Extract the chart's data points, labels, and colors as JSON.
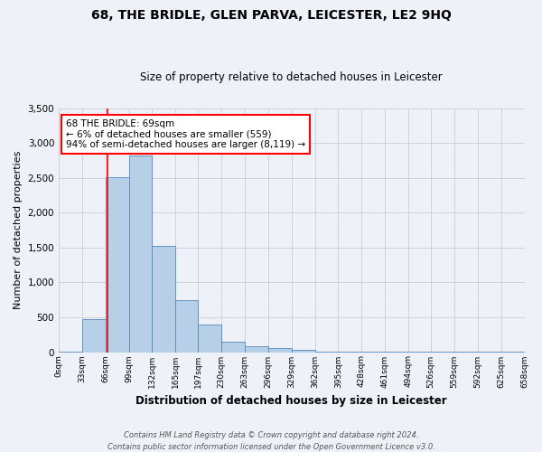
{
  "title": "68, THE BRIDLE, GLEN PARVA, LEICESTER, LE2 9HQ",
  "subtitle": "Size of property relative to detached houses in Leicester",
  "xlabel": "Distribution of detached houses by size in Leicester",
  "ylabel": "Number of detached properties",
  "bin_edges": [
    0,
    33,
    66,
    99,
    132,
    165,
    197,
    230,
    263,
    296,
    329,
    362,
    395,
    428,
    461,
    494,
    526,
    559,
    592,
    625,
    658
  ],
  "bin_labels": [
    "0sqm",
    "33sqm",
    "66sqm",
    "99sqm",
    "132sqm",
    "165sqm",
    "197sqm",
    "230sqm",
    "263sqm",
    "296sqm",
    "329sqm",
    "362sqm",
    "395sqm",
    "428sqm",
    "461sqm",
    "494sqm",
    "526sqm",
    "559sqm",
    "592sqm",
    "625sqm",
    "658sqm"
  ],
  "bar_heights": [
    10,
    470,
    2510,
    2820,
    1520,
    750,
    400,
    150,
    80,
    55,
    35,
    10,
    7,
    7,
    3,
    5,
    2,
    3,
    2,
    2
  ],
  "bar_color": "#b8cfe8",
  "bar_edgecolor": "#5588bb",
  "red_line_x": 69,
  "ylim": [
    0,
    3500
  ],
  "yticks": [
    0,
    500,
    1000,
    1500,
    2000,
    2500,
    3000,
    3500
  ],
  "annotation_title": "68 THE BRIDLE: 69sqm",
  "annotation_line1": "← 6% of detached houses are smaller (559)",
  "annotation_line2": "94% of semi-detached houses are larger (8,119) →",
  "footnote1": "Contains HM Land Registry data © Crown copyright and database right 2024.",
  "footnote2": "Contains public sector information licensed under the Open Government Licence v3.0.",
  "background_color": "#eef2f8",
  "grid_color": "#c8ccd8"
}
